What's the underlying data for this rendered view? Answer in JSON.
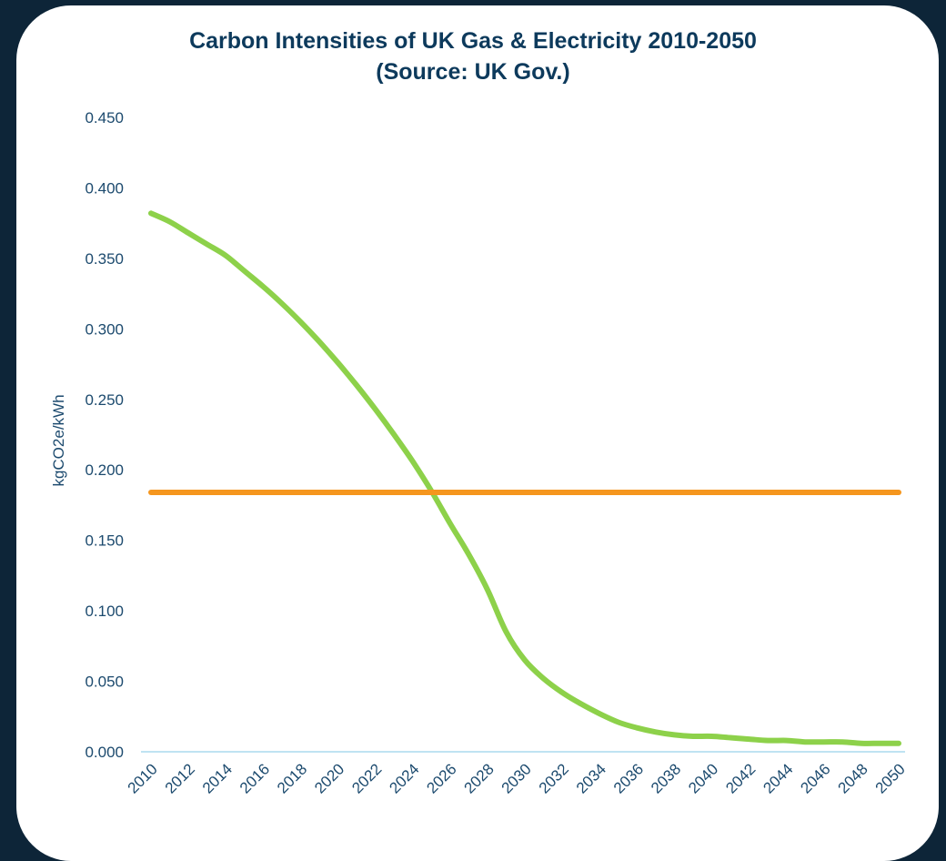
{
  "chart_data": {
    "type": "line",
    "title": "Carbon Intensities of UK Gas & Electricity 2010-2050",
    "subtitle": "(Source: UK Gov.)",
    "xlabel": "",
    "ylabel": "kgCO2e/kWh",
    "ylim": [
      0,
      0.45
    ],
    "y_ticks": [
      "0.000",
      "0.050",
      "0.100",
      "0.150",
      "0.200",
      "0.250",
      "0.300",
      "0.350",
      "0.400",
      "0.450"
    ],
    "x_ticks": [
      "2010",
      "2012",
      "2014",
      "2016",
      "2018",
      "2020",
      "2022",
      "2024",
      "2026",
      "2028",
      "2030",
      "2032",
      "2034",
      "2036",
      "2038",
      "2040",
      "2042",
      "2044",
      "2046",
      "2048",
      "2050"
    ],
    "x": [
      2010,
      2011,
      2012,
      2013,
      2014,
      2015,
      2016,
      2017,
      2018,
      2019,
      2020,
      2021,
      2022,
      2023,
      2024,
      2025,
      2026,
      2027,
      2028,
      2029,
      2030,
      2031,
      2032,
      2033,
      2034,
      2035,
      2036,
      2037,
      2038,
      2039,
      2040,
      2041,
      2042,
      2043,
      2044,
      2045,
      2046,
      2047,
      2048,
      2049,
      2050
    ],
    "grid": false,
    "legend": "none",
    "series": [
      {
        "color": "#8dd14a",
        "values": [
          0.382,
          0.376,
          0.368,
          0.36,
          0.352,
          0.341,
          0.33,
          0.318,
          0.305,
          0.291,
          0.276,
          0.26,
          0.243,
          0.225,
          0.206,
          0.185,
          0.162,
          0.14,
          0.115,
          0.085,
          0.065,
          0.052,
          0.042,
          0.034,
          0.027,
          0.021,
          0.017,
          0.014,
          0.012,
          0.011,
          0.011,
          0.01,
          0.009,
          0.008,
          0.008,
          0.007,
          0.007,
          0.007,
          0.006,
          0.006,
          0.006
        ]
      },
      {
        "color": "#f5961e",
        "values": [
          0.184,
          0.184,
          0.184,
          0.184,
          0.184,
          0.184,
          0.184,
          0.184,
          0.184,
          0.184,
          0.184,
          0.184,
          0.184,
          0.184,
          0.184,
          0.184,
          0.184,
          0.184,
          0.184,
          0.184,
          0.184,
          0.184,
          0.184,
          0.184,
          0.184,
          0.184,
          0.184,
          0.184,
          0.184,
          0.184,
          0.184,
          0.184,
          0.184,
          0.184,
          0.184,
          0.184,
          0.184,
          0.184,
          0.184,
          0.184,
          0.184
        ]
      }
    ],
    "axis_color": "#bfe3f2"
  }
}
